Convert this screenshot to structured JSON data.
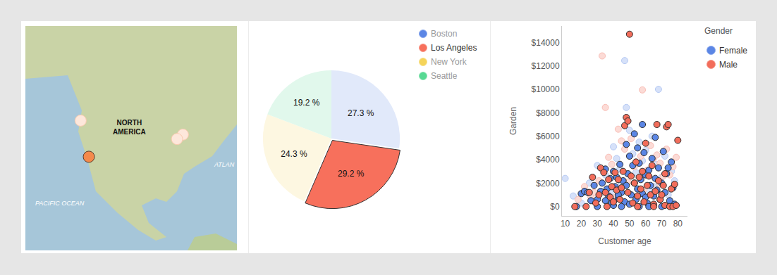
{
  "chart_data": [
    {
      "type": "scatter",
      "tick_labels": false,
      "xlim": [
        -150,
        -44
      ],
      "ylim": [
        -1,
        83
      ],
      "annotations": [
        [
          "NORTH",
          "AMERICA"
        ],
        [
          "PACIFIC OCEAN"
        ],
        [
          "ATLAN"
        ]
      ],
      "series": [
        {
          "color": "#f4894b",
          "marker": "faded",
          "x": [
            -122.3,
            -71.06,
            -74.0
          ],
          "values": [
            47.6,
            42.36,
            40.7
          ]
        },
        {
          "color": "#f4894b",
          "marker": "solid",
          "x": [
            -118.2
          ],
          "values": [
            34.05
          ]
        }
      ]
    },
    {
      "type": "pie",
      "data_labels": true,
      "legend": "top right",
      "series": [
        {
          "name": "Boston",
          "color": "#5b86e5",
          "marker": "faded",
          "values": [
            27.3
          ],
          "value_labels": [
            "27.3 %"
          ]
        },
        {
          "name": "Los Angeles",
          "color": "#f7705c",
          "marker": "solid",
          "values": [
            29.2
          ],
          "value_labels": [
            "29.2 %"
          ]
        },
        {
          "name": "New York",
          "color": "#f5d45a",
          "marker": "faded",
          "values": [
            24.3
          ],
          "value_labels": [
            "24.3 %"
          ]
        },
        {
          "name": "Seattle",
          "color": "#57d993",
          "marker": "faded",
          "values": [
            19.2
          ],
          "value_labels": [
            "19.2 %"
          ]
        }
      ]
    },
    {
      "type": "scatter",
      "x_label": "Customer age",
      "y_label": "Garden",
      "legend": "top right",
      "legend_title": "Gender",
      "xlim": [
        8,
        86
      ],
      "xticks": [
        10,
        20,
        30,
        40,
        50,
        60,
        70,
        80
      ],
      "ylim": [
        -800,
        15400
      ],
      "yticks": [
        {
          "value": 0,
          "label": "$0"
        },
        {
          "value": 2000,
          "label": "$2000"
        },
        {
          "value": 4000,
          "label": "$4000"
        },
        {
          "value": 6000,
          "label": "$6000"
        },
        {
          "value": 8000,
          "label": "$8000"
        },
        {
          "value": 10000,
          "label": "$10000"
        },
        {
          "value": 12000,
          "label": "$12000"
        },
        {
          "value": 14000,
          "label": "$14000"
        }
      ],
      "series": [
        {
          "name": "Female",
          "color": "#5b86e5",
          "marker": "faded",
          "x": [
            10,
            15,
            20,
            25,
            30,
            35,
            40,
            42,
            44,
            47,
            48,
            50,
            52,
            54,
            56,
            58,
            60,
            62,
            64,
            66,
            68,
            70,
            72,
            74,
            76,
            78,
            45,
            55,
            65,
            38
          ],
          "values": [
            2400,
            900,
            300,
            2000,
            3500,
            2700,
            5100,
            4100,
            3200,
            12450,
            8450,
            6500,
            4500,
            2900,
            5500,
            3900,
            4800,
            1400,
            6000,
            3600,
            10000,
            2500,
            4300,
            1000,
            3000,
            2200,
            1900,
            800,
            1700,
            1200
          ]
        },
        {
          "name": "Male",
          "color": "#f26d5b",
          "marker": "faded",
          "x": [
            18,
            22,
            28,
            33,
            35,
            37,
            39,
            43,
            45,
            47,
            51,
            53,
            57,
            58,
            61,
            63,
            65,
            67,
            69,
            71,
            73,
            75,
            77,
            79,
            41,
            49,
            59,
            69,
            31,
            26
          ],
          "values": [
            600,
            1700,
            1200,
            12850,
            8450,
            4200,
            3600,
            6600,
            5600,
            4900,
            5800,
            3400,
            4300,
            9950,
            3100,
            5200,
            4100,
            4400,
            3700,
            2600,
            4900,
            2700,
            3400,
            4200,
            800,
            2100,
            1500,
            1900,
            2200,
            800
          ]
        },
        {
          "name": "Female",
          "color": "#5b86e5",
          "marker": "solid",
          "x": [
            17,
            20,
            22,
            24,
            26,
            28,
            30,
            32,
            33,
            35,
            36,
            37,
            38,
            39,
            40,
            41,
            42,
            43,
            44,
            45,
            46,
            47,
            48,
            48,
            49,
            50,
            51,
            52,
            53,
            53,
            54,
            55,
            55,
            56,
            57,
            58,
            58,
            59,
            60,
            61,
            62,
            63,
            64,
            65,
            66,
            66,
            67,
            68,
            69,
            70,
            71,
            72,
            73,
            74,
            75,
            76,
            77,
            78,
            62,
            45,
            30,
            56,
            70,
            40,
            50,
            60,
            35,
            43
          ],
          "values": [
            0,
            1100,
            1300,
            1200,
            500,
            1800,
            600,
            1300,
            2000,
            3200,
            1500,
            900,
            2400,
            300,
            3000,
            1700,
            2500,
            700,
            3600,
            1200,
            2200,
            400,
            5300,
            1800,
            2800,
            4300,
            1000,
            3500,
            6200,
            2000,
            600,
            5000,
            1500,
            3700,
            2300,
            7000,
            1100,
            4600,
            2700,
            300,
            3100,
            1800,
            4100,
            900,
            5900,
            2400,
            1400,
            3300,
            600,
            2000,
            4700,
            1200,
            2800,
            3300,
            500,
            3800,
            1600,
            200,
            0,
            0,
            0,
            0,
            0,
            100,
            200,
            800,
            500,
            1000
          ]
        },
        {
          "name": "Male",
          "color": "#f26d5b",
          "marker": "solid",
          "x": [
            16,
            23,
            25,
            27,
            29,
            31,
            32,
            34,
            36,
            37,
            38,
            39,
            40,
            41,
            42,
            43,
            44,
            46,
            47,
            48,
            49,
            49,
            50,
            51,
            52,
            53,
            54,
            55,
            56,
            57,
            58,
            59,
            60,
            61,
            62,
            63,
            64,
            65,
            66,
            67,
            68,
            69,
            70,
            71,
            72,
            73,
            74,
            75,
            76,
            77,
            78,
            80,
            79,
            45,
            35,
            55,
            65,
            72
          ],
          "values": [
            0,
            0,
            1200,
            2500,
            300,
            1000,
            3300,
            2900,
            0,
            2300,
            800,
            1700,
            400,
            2900,
            1400,
            2300,
            600,
            3000,
            6900,
            7600,
            7300,
            1200,
            14700,
            2600,
            300,
            2000,
            3800,
            900,
            2500,
            1500,
            3000,
            400,
            5400,
            1800,
            2600,
            1000,
            3500,
            200,
            1300,
            7000,
            2200,
            600,
            1000,
            1800,
            100,
            6800,
            7000,
            0,
            1500,
            0,
            1900,
            5650,
            100,
            1600,
            1200,
            0,
            0,
            2800
          ]
        }
      ]
    }
  ]
}
